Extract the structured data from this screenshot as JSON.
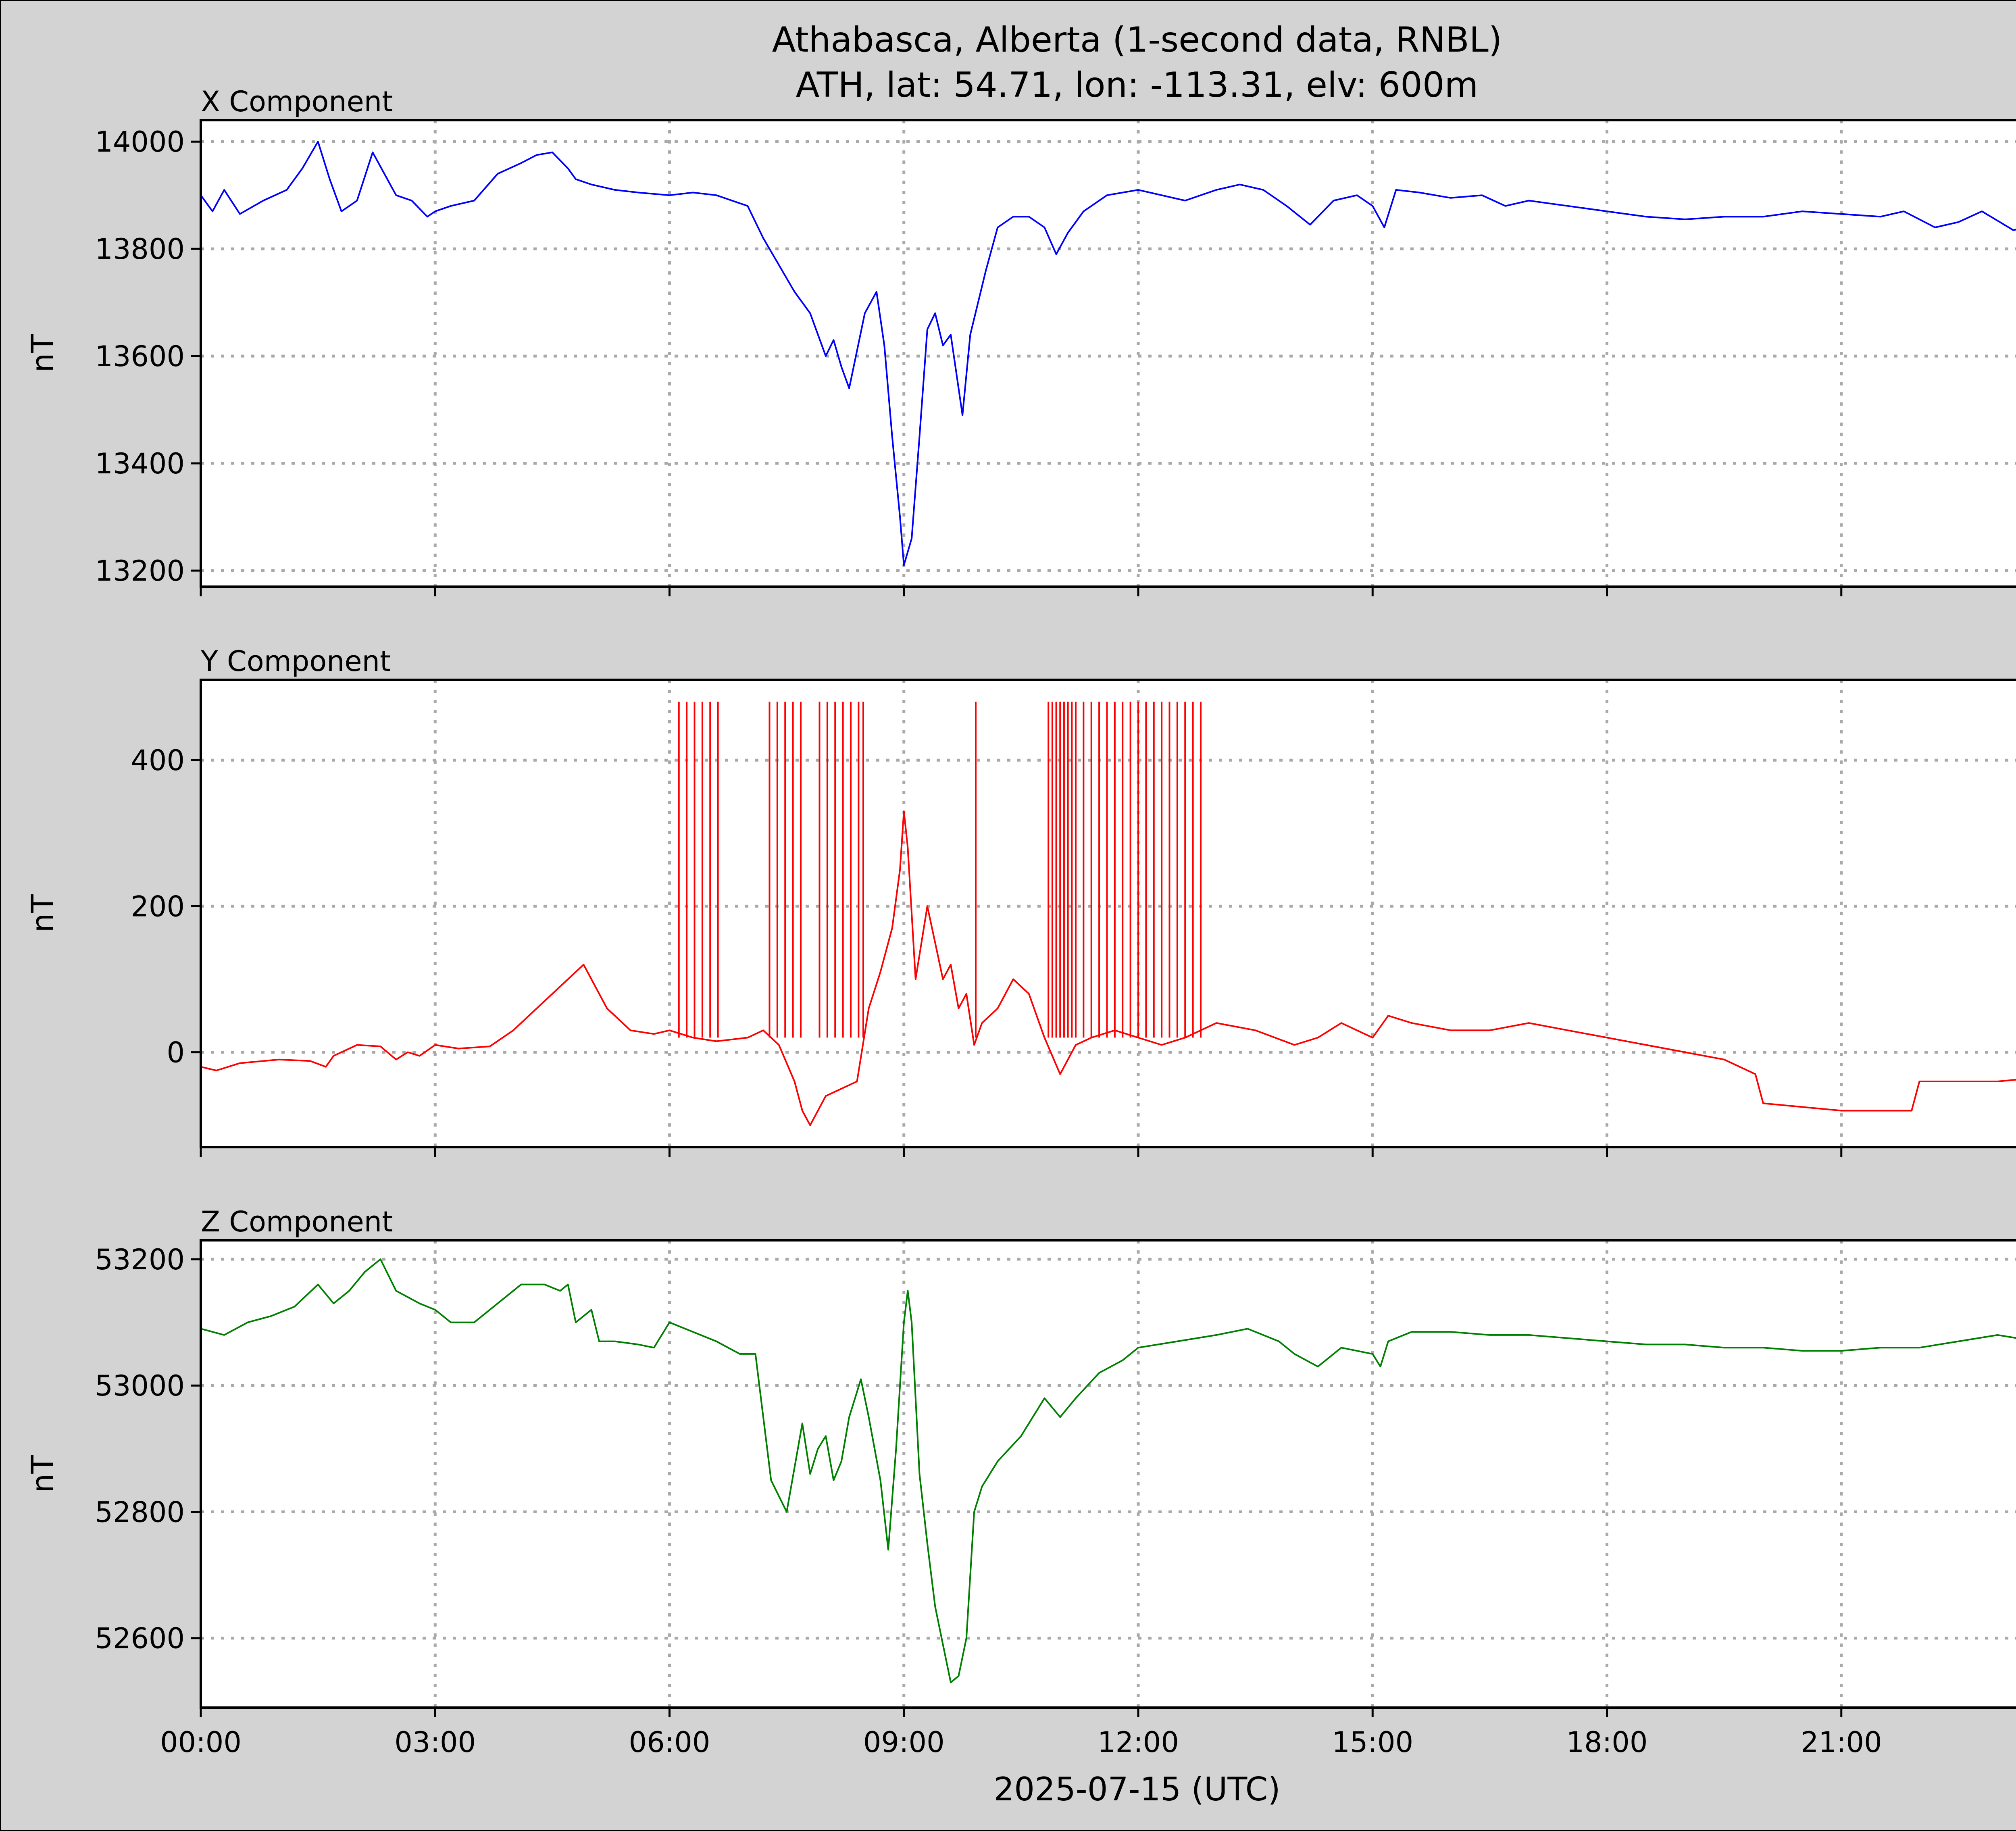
{
  "chart_data": {
    "type": "line",
    "title": "Athabasca, Alberta (1-second data, RNBL)",
    "subtitle": "ATH, lat: 54.71, lon: -113.31, elv: 600m",
    "xlabel": "2025-07-15 (UTC)",
    "x_unit": "hour (UTC)",
    "xlim": [
      0,
      24
    ],
    "x_ticks": [
      0,
      3,
      6,
      9,
      12,
      15,
      18,
      21
    ],
    "x_tick_labels": [
      "00:00",
      "03:00",
      "06:00",
      "09:00",
      "12:00",
      "15:00",
      "18:00",
      "21:00"
    ],
    "grid": true,
    "panels": [
      {
        "title": "X Component",
        "ylabel": "nT",
        "color": "#0000ff",
        "ylim": [
          13170,
          14040
        ],
        "y_ticks": [
          13200,
          13400,
          13600,
          13800,
          14000
        ],
        "x": [
          0,
          0.15,
          0.3,
          0.5,
          0.8,
          1.1,
          1.3,
          1.5,
          1.65,
          1.8,
          2.0,
          2.2,
          2.35,
          2.5,
          2.7,
          2.9,
          3.0,
          3.2,
          3.5,
          3.8,
          4.1,
          4.3,
          4.5,
          4.7,
          4.8,
          5.0,
          5.3,
          5.6,
          6.0,
          6.3,
          6.6,
          6.8,
          7.0,
          7.2,
          7.4,
          7.6,
          7.8,
          8.0,
          8.1,
          8.2,
          8.3,
          8.5,
          8.65,
          8.75,
          8.85,
          8.95,
          9.0,
          9.1,
          9.2,
          9.3,
          9.4,
          9.5,
          9.6,
          9.75,
          9.85,
          9.95,
          10.05,
          10.2,
          10.4,
          10.6,
          10.8,
          10.95,
          11.1,
          11.3,
          11.6,
          12.0,
          12.3,
          12.6,
          13.0,
          13.3,
          13.6,
          13.9,
          14.2,
          14.5,
          14.8,
          15.0,
          15.15,
          15.3,
          15.6,
          16.0,
          16.4,
          16.7,
          17.0,
          17.5,
          18.0,
          18.5,
          19.0,
          19.5,
          20.0,
          20.5,
          21.0,
          21.5,
          21.8,
          22.2,
          22.5,
          22.8,
          23.2,
          23.6,
          24.0
        ],
        "values": [
          13900,
          13870,
          13910,
          13865,
          13890,
          13910,
          13950,
          14000,
          13930,
          13870,
          13890,
          13980,
          13940,
          13900,
          13890,
          13860,
          13870,
          13880,
          13890,
          13940,
          13960,
          13975,
          13980,
          13950,
          13930,
          13920,
          13910,
          13905,
          13900,
          13905,
          13900,
          13890,
          13880,
          13820,
          13770,
          13720,
          13680,
          13600,
          13630,
          13580,
          13540,
          13680,
          13720,
          13620,
          13450,
          13300,
          13210,
          13260,
          13450,
          13650,
          13680,
          13620,
          13640,
          13490,
          13640,
          13700,
          13760,
          13840,
          13860,
          13860,
          13840,
          13790,
          13830,
          13870,
          13900,
          13910,
          13900,
          13890,
          13910,
          13920,
          13910,
          13880,
          13845,
          13890,
          13900,
          13880,
          13840,
          13910,
          13905,
          13895,
          13900,
          13880,
          13890,
          13880,
          13870,
          13860,
          13855,
          13860,
          13860,
          13870,
          13865,
          13860,
          13870,
          13840,
          13850,
          13870,
          13835,
          13845,
          13870
        ]
      },
      {
        "title": "Y Component",
        "ylabel": "nT",
        "color": "#ff0000",
        "ylim": [
          -130,
          510
        ],
        "y_ticks": [
          0,
          200,
          400
        ],
        "x": [
          0,
          0.2,
          0.5,
          1.0,
          1.4,
          1.6,
          1.7,
          2.0,
          2.3,
          2.5,
          2.65,
          2.8,
          3.0,
          3.3,
          3.7,
          4.0,
          4.3,
          4.5,
          4.7,
          4.9,
          5.0,
          5.2,
          5.5,
          5.8,
          6.0,
          6.3,
          6.6,
          7.0,
          7.2,
          7.4,
          7.6,
          7.7,
          7.8,
          8.0,
          8.2,
          8.4,
          8.55,
          8.7,
          8.85,
          8.95,
          9.0,
          9.05,
          9.15,
          9.3,
          9.4,
          9.5,
          9.6,
          9.7,
          9.8,
          9.9,
          10.0,
          10.2,
          10.4,
          10.6,
          10.8,
          11.0,
          11.2,
          11.4,
          11.7,
          12.0,
          12.3,
          12.6,
          13.0,
          13.5,
          14.0,
          14.3,
          14.6,
          14.8,
          15.0,
          15.2,
          15.5,
          16.0,
          16.5,
          17.0,
          17.5,
          18.0,
          18.5,
          19.0,
          19.5,
          19.9,
          20.0,
          20.5,
          21.0,
          21.5,
          21.9,
          22.0,
          22.5,
          23.0,
          23.5,
          24.0
        ],
        "values": [
          -20,
          -25,
          -15,
          -10,
          -12,
          -20,
          -5,
          10,
          8,
          -10,
          0,
          -5,
          10,
          5,
          8,
          30,
          60,
          80,
          100,
          120,
          100,
          60,
          30,
          25,
          30,
          20,
          15,
          20,
          30,
          10,
          -40,
          -80,
          -100,
          -60,
          -50,
          -40,
          60,
          110,
          170,
          250,
          330,
          280,
          100,
          200,
          150,
          100,
          120,
          60,
          80,
          10,
          40,
          60,
          100,
          80,
          20,
          -30,
          10,
          20,
          30,
          20,
          10,
          20,
          40,
          30,
          10,
          20,
          40,
          30,
          20,
          50,
          40,
          30,
          30,
          40,
          30,
          20,
          10,
          0,
          -10,
          -30,
          -70,
          -75,
          -80,
          -80,
          -80,
          -40,
          -40,
          -40,
          -35,
          -35
        ],
        "spike_label": "vertical spikes (to ~480 nT)",
        "spikes_x": [
          6.12,
          6.22,
          6.32,
          6.42,
          6.52,
          6.62,
          7.28,
          7.38,
          7.48,
          7.58,
          7.68,
          7.92,
          8.02,
          8.12,
          8.22,
          8.32,
          8.42,
          8.48,
          9.92,
          10.85,
          10.9,
          10.95,
          11.0,
          11.05,
          11.1,
          11.15,
          11.2,
          11.3,
          11.4,
          11.5,
          11.6,
          11.7,
          11.8,
          11.9,
          12.0,
          12.1,
          12.2,
          12.3,
          12.4,
          12.5,
          12.6,
          12.7,
          12.8
        ],
        "spike_top": 480
      },
      {
        "title": "Z Component",
        "ylabel": "nT",
        "color": "#008000",
        "ylim": [
          52490,
          53230
        ],
        "y_ticks": [
          52600,
          52800,
          53000,
          53200
        ],
        "x": [
          0,
          0.3,
          0.6,
          0.9,
          1.2,
          1.5,
          1.7,
          1.9,
          2.1,
          2.3,
          2.5,
          2.8,
          3.0,
          3.2,
          3.5,
          3.8,
          4.1,
          4.4,
          4.6,
          4.7,
          4.8,
          5.0,
          5.1,
          5.3,
          5.6,
          5.8,
          6.0,
          6.3,
          6.6,
          6.9,
          7.1,
          7.2,
          7.3,
          7.5,
          7.6,
          7.7,
          7.8,
          7.9,
          8.0,
          8.1,
          8.2,
          8.3,
          8.45,
          8.55,
          8.7,
          8.8,
          8.9,
          9.0,
          9.05,
          9.1,
          9.2,
          9.3,
          9.4,
          9.5,
          9.6,
          9.7,
          9.8,
          9.9,
          10.0,
          10.2,
          10.5,
          10.8,
          11.0,
          11.2,
          11.5,
          11.8,
          12.0,
          12.5,
          13.0,
          13.4,
          13.8,
          14.0,
          14.3,
          14.6,
          15.0,
          15.1,
          15.2,
          15.5,
          16.0,
          16.5,
          17.0,
          17.5,
          18.0,
          18.5,
          19.0,
          19.5,
          20.0,
          20.5,
          21.0,
          21.5,
          22.0,
          22.5,
          23.0,
          23.5,
          24.0
        ],
        "values": [
          53090,
          53080,
          53100,
          53110,
          53125,
          53160,
          53130,
          53150,
          53180,
          53200,
          53150,
          53130,
          53120,
          53100,
          53100,
          53130,
          53160,
          53160,
          53150,
          53160,
          53100,
          53120,
          53070,
          53070,
          53065,
          53060,
          53100,
          53085,
          53070,
          53050,
          53050,
          52950,
          52850,
          52800,
          52870,
          52940,
          52860,
          52900,
          52920,
          52850,
          52880,
          52950,
          53010,
          52950,
          52850,
          52740,
          52900,
          53100,
          53150,
          53100,
          52860,
          52750,
          52650,
          52590,
          52530,
          52540,
          52600,
          52800,
          52840,
          52880,
          52920,
          52980,
          52950,
          52980,
          53020,
          53040,
          53060,
          53070,
          53080,
          53090,
          53070,
          53050,
          53030,
          53060,
          53050,
          53030,
          53070,
          53085,
          53085,
          53080,
          53080,
          53075,
          53070,
          53065,
          53065,
          53060,
          53060,
          53055,
          53055,
          53060,
          53060,
          53070,
          53080,
          53070,
          53090
        ]
      }
    ]
  }
}
